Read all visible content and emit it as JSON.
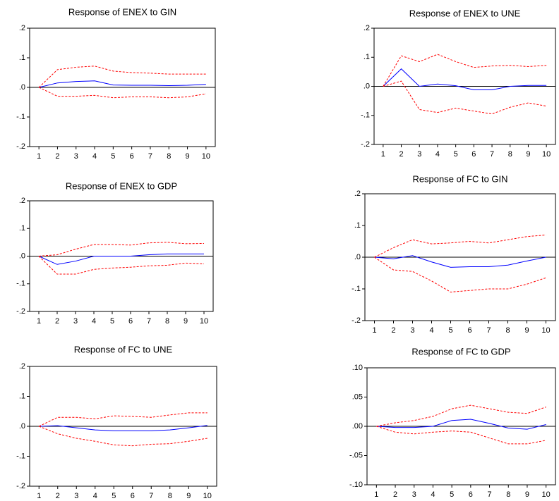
{
  "chart_data": [
    {
      "type": "line",
      "title": "Response of ENEX to GIN",
      "x": [
        1,
        2,
        3,
        4,
        5,
        6,
        7,
        8,
        9,
        10
      ],
      "xlim": [
        0.5,
        10.5
      ],
      "xticks": [
        1,
        2,
        3,
        4,
        5,
        6,
        7,
        8,
        9,
        10
      ],
      "ylim": [
        -0.2,
        0.2
      ],
      "yticks": [
        {
          "value": 0.2,
          "label": ".2"
        },
        {
          "value": 0.1,
          "label": ".1"
        },
        {
          "value": 0,
          "label": ".0"
        },
        {
          "value": -0.1,
          "label": "-.1"
        },
        {
          "value": -0.2,
          "label": "-.2"
        }
      ],
      "zero_line": true,
      "series": [
        {
          "color": "#0000ff",
          "dash": false,
          "values": [
            0,
            0.015,
            0.02,
            0.022,
            0.008,
            0.007,
            0.007,
            0.006,
            0.007,
            0.01
          ]
        },
        {
          "color": "#ff0000",
          "dash": true,
          "values": [
            0,
            0.06,
            0.068,
            0.072,
            0.055,
            0.05,
            0.048,
            0.045,
            0.045,
            0.045
          ]
        },
        {
          "color": "#ff0000",
          "dash": true,
          "values": [
            0,
            -0.03,
            -0.03,
            -0.027,
            -0.035,
            -0.032,
            -0.032,
            -0.035,
            -0.032,
            -0.022
          ]
        }
      ]
    },
    {
      "type": "line",
      "title": "Response of ENEX to UNE",
      "x": [
        1,
        2,
        3,
        4,
        5,
        6,
        7,
        8,
        9,
        10
      ],
      "xlim": [
        0.5,
        10.5
      ],
      "xticks": [
        1,
        2,
        3,
        4,
        5,
        6,
        7,
        8,
        9,
        10
      ],
      "ylim": [
        -0.2,
        0.2
      ],
      "yticks": [
        {
          "value": 0.2,
          "label": ".2"
        },
        {
          "value": 0.1,
          "label": ".1"
        },
        {
          "value": 0,
          "label": ".0"
        },
        {
          "value": -0.1,
          "label": "-.1"
        },
        {
          "value": -0.2,
          "label": "-.2"
        }
      ],
      "zero_line": true,
      "series": [
        {
          "color": "#0000ff",
          "dash": false,
          "values": [
            0,
            0.06,
            0,
            0.008,
            0.002,
            -0.012,
            -0.012,
            0,
            0.003,
            0.003
          ]
        },
        {
          "color": "#ff0000",
          "dash": true,
          "values": [
            0,
            0.105,
            0.085,
            0.11,
            0.085,
            0.065,
            0.07,
            0.072,
            0.068,
            0.072
          ]
        },
        {
          "color": "#ff0000",
          "dash": true,
          "values": [
            0,
            0.018,
            -0.08,
            -0.09,
            -0.075,
            -0.085,
            -0.095,
            -0.072,
            -0.057,
            -0.068
          ]
        }
      ]
    },
    {
      "type": "line",
      "title": "Response of ENEX to GDP",
      "x": [
        1,
        2,
        3,
        4,
        5,
        6,
        7,
        8,
        9,
        10
      ],
      "xlim": [
        0.5,
        10.5
      ],
      "xticks": [
        1,
        2,
        3,
        4,
        5,
        6,
        7,
        8,
        9,
        10
      ],
      "ylim": [
        -0.2,
        0.2
      ],
      "yticks": [
        {
          "value": 0.2,
          "label": ".2"
        },
        {
          "value": 0.1,
          "label": ".1"
        },
        {
          "value": 0,
          "label": ".0"
        },
        {
          "value": -0.1,
          "label": "-.1"
        },
        {
          "value": -0.2,
          "label": "-.2"
        }
      ],
      "zero_line": true,
      "series": [
        {
          "color": "#0000ff",
          "dash": false,
          "values": [
            0,
            -0.03,
            -0.018,
            0,
            0,
            0,
            0.005,
            0.008,
            0.008,
            0.008
          ]
        },
        {
          "color": "#ff0000",
          "dash": true,
          "values": [
            0,
            0.005,
            0.025,
            0.042,
            0.042,
            0.04,
            0.048,
            0.05,
            0.045,
            0.046
          ]
        },
        {
          "color": "#ff0000",
          "dash": true,
          "values": [
            0,
            -0.065,
            -0.065,
            -0.048,
            -0.043,
            -0.04,
            -0.035,
            -0.033,
            -0.025,
            -0.028
          ]
        }
      ]
    },
    {
      "type": "line",
      "title": "Response of FC to GIN",
      "x": [
        1,
        2,
        3,
        4,
        5,
        6,
        7,
        8,
        9,
        10
      ],
      "xlim": [
        0.5,
        10.5
      ],
      "xticks": [
        1,
        2,
        3,
        4,
        5,
        6,
        7,
        8,
        9,
        10
      ],
      "ylim": [
        -0.2,
        0.2
      ],
      "yticks": [
        {
          "value": 0.2,
          "label": ".2"
        },
        {
          "value": 0.1,
          "label": ".1"
        },
        {
          "value": 0,
          "label": ".0"
        },
        {
          "value": -0.1,
          "label": "-.1"
        },
        {
          "value": -0.2,
          "label": "-.2"
        }
      ],
      "zero_line": true,
      "series": [
        {
          "color": "#0000ff",
          "dash": false,
          "values": [
            0,
            -0.005,
            0.005,
            -0.015,
            -0.032,
            -0.03,
            -0.03,
            -0.025,
            -0.012,
            0
          ]
        },
        {
          "color": "#ff0000",
          "dash": true,
          "values": [
            0,
            0.03,
            0.055,
            0.042,
            0.045,
            0.05,
            0.045,
            0.055,
            0.065,
            0.07
          ]
        },
        {
          "color": "#ff0000",
          "dash": true,
          "values": [
            0,
            -0.04,
            -0.045,
            -0.075,
            -0.11,
            -0.105,
            -0.1,
            -0.1,
            -0.085,
            -0.065
          ]
        }
      ]
    },
    {
      "type": "line",
      "title": "Response of FC to UNE",
      "x": [
        1,
        2,
        3,
        4,
        5,
        6,
        7,
        8,
        9,
        10
      ],
      "xlim": [
        0.5,
        10.5
      ],
      "xticks": [
        1,
        2,
        3,
        4,
        5,
        6,
        7,
        8,
        9,
        10
      ],
      "ylim": [
        -0.2,
        0.2
      ],
      "yticks": [
        {
          "value": 0.2,
          "label": ".2"
        },
        {
          "value": 0.1,
          "label": ".1"
        },
        {
          "value": 0,
          "label": ".0"
        },
        {
          "value": -0.1,
          "label": "-.1"
        },
        {
          "value": -0.2,
          "label": "-.2"
        }
      ],
      "zero_line": true,
      "series": [
        {
          "color": "#0000ff",
          "dash": false,
          "values": [
            0,
            0.002,
            -0.005,
            -0.012,
            -0.015,
            -0.015,
            -0.015,
            -0.012,
            -0.005,
            0.003
          ]
        },
        {
          "color": "#ff0000",
          "dash": true,
          "values": [
            0,
            0.03,
            0.03,
            0.025,
            0.035,
            0.033,
            0.03,
            0.038,
            0.045,
            0.045
          ]
        },
        {
          "color": "#ff0000",
          "dash": true,
          "values": [
            0,
            -0.025,
            -0.04,
            -0.05,
            -0.062,
            -0.065,
            -0.06,
            -0.058,
            -0.05,
            -0.04
          ]
        }
      ]
    },
    {
      "type": "line",
      "title": "Response of FC to GDP",
      "x": [
        1,
        2,
        3,
        4,
        5,
        6,
        7,
        8,
        9,
        10
      ],
      "xlim": [
        0.5,
        10.5
      ],
      "xticks": [
        1,
        2,
        3,
        4,
        5,
        6,
        7,
        8,
        9,
        10
      ],
      "ylim": [
        -0.1,
        0.1
      ],
      "yticks": [
        {
          "value": 0.1,
          "label": ".10"
        },
        {
          "value": 0.05,
          "label": ".05"
        },
        {
          "value": 0,
          "label": ".00"
        },
        {
          "value": -0.05,
          "label": "-.05"
        },
        {
          "value": -0.1,
          "label": "-.10"
        }
      ],
      "zero_line": true,
      "series": [
        {
          "color": "#0000ff",
          "dash": false,
          "values": [
            0,
            -0.002,
            -0.002,
            0,
            0.01,
            0.012,
            0.005,
            -0.003,
            -0.005,
            0.003
          ]
        },
        {
          "color": "#ff0000",
          "dash": true,
          "values": [
            0,
            0.006,
            0.01,
            0.017,
            0.03,
            0.036,
            0.03,
            0.024,
            0.022,
            0.033
          ]
        },
        {
          "color": "#ff0000",
          "dash": true,
          "values": [
            0,
            -0.01,
            -0.013,
            -0.01,
            -0.008,
            -0.01,
            -0.02,
            -0.03,
            -0.03,
            -0.024
          ]
        }
      ]
    }
  ]
}
